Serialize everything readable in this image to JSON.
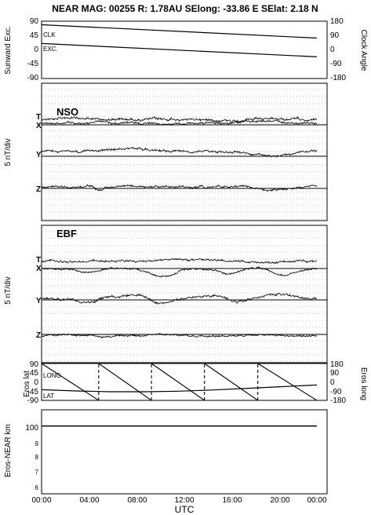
{
  "title": "NEAR MAG: 00255  R: 1.78AU  SElong:  -33.86 E  SElat:    2.18 N",
  "x_axis": {
    "label": "UTC",
    "ticks": [
      "00:00",
      "04:00",
      "08:00",
      "12:00",
      "16:00",
      "20:00",
      "00:00"
    ],
    "range_hours": [
      0,
      24
    ]
  },
  "chart_data": [
    {
      "type": "line",
      "id": "sunward-clock",
      "ylabel_left": "Sunward Exc.",
      "ylabel_right": "Clock Angle",
      "left_ticks": [
        "90",
        "45",
        "0",
        "-45",
        "-90"
      ],
      "right_ticks": [
        "180",
        "90",
        "0",
        "-90",
        "-180"
      ],
      "left_ylim": [
        -90,
        90
      ],
      "right_ylim": [
        -180,
        180
      ],
      "series": [
        {
          "name": "CLK",
          "axis": "right",
          "x": [
            0,
            24
          ],
          "y": [
            158,
            74
          ]
        },
        {
          "name": "EXC.",
          "axis": "left",
          "x": [
            0,
            24
          ],
          "y": [
            20,
            -22
          ]
        }
      ]
    },
    {
      "type": "line",
      "id": "nso",
      "panel_label": "NSO",
      "ylabel": "5 nT/div",
      "channels": [
        "T",
        "X",
        "Y",
        "Z"
      ],
      "grid": "dotted horizontal divisions"
    },
    {
      "type": "line",
      "id": "ebf",
      "panel_label": "EBF",
      "ylabel": "5 nT/div",
      "channels": [
        "T",
        "X",
        "Y",
        "Z"
      ],
      "grid": "dotted horizontal divisions"
    },
    {
      "type": "line",
      "id": "eros-geometry",
      "ylabel_left": "Eros lat",
      "ylabel_right": "Eros long",
      "left_ticks": [
        "90",
        "45",
        "0",
        "-45",
        "-90"
      ],
      "right_ticks": [
        "180",
        "90",
        "0",
        "-90",
        "-180"
      ],
      "left_ylim": [
        -90,
        90
      ],
      "right_ylim": [
        -180,
        180
      ],
      "series": [
        {
          "name": "LONG",
          "axis": "right",
          "style": "sawtooth, vertical dashed wraps",
          "wrap_hours": [
            4.98,
            9.58,
            14.2,
            18.85
          ],
          "x": [
            0,
            4.98,
            4.98,
            9.58,
            9.58,
            14.2,
            14.2,
            18.85,
            18.85,
            24
          ],
          "y": [
            180,
            -180,
            180,
            -180,
            180,
            -180,
            180,
            -180,
            180,
            -180
          ]
        },
        {
          "name": "LAT",
          "axis": "left",
          "x": [
            0,
            3,
            6,
            9,
            12,
            15,
            18,
            21,
            24
          ],
          "y": [
            -38,
            -44,
            -48,
            -48,
            -45,
            -39,
            -31,
            -23,
            -15
          ]
        }
      ]
    },
    {
      "type": "line",
      "id": "eros-near-distance",
      "ylabel": "Eros-NEAR km",
      "scale": "log",
      "left_ticks": [
        "100",
        "9",
        "8",
        "7",
        "6"
      ],
      "series": [
        {
          "name": "distance",
          "x": [
            0,
            24
          ],
          "y": [
            102,
            102
          ]
        }
      ]
    }
  ]
}
